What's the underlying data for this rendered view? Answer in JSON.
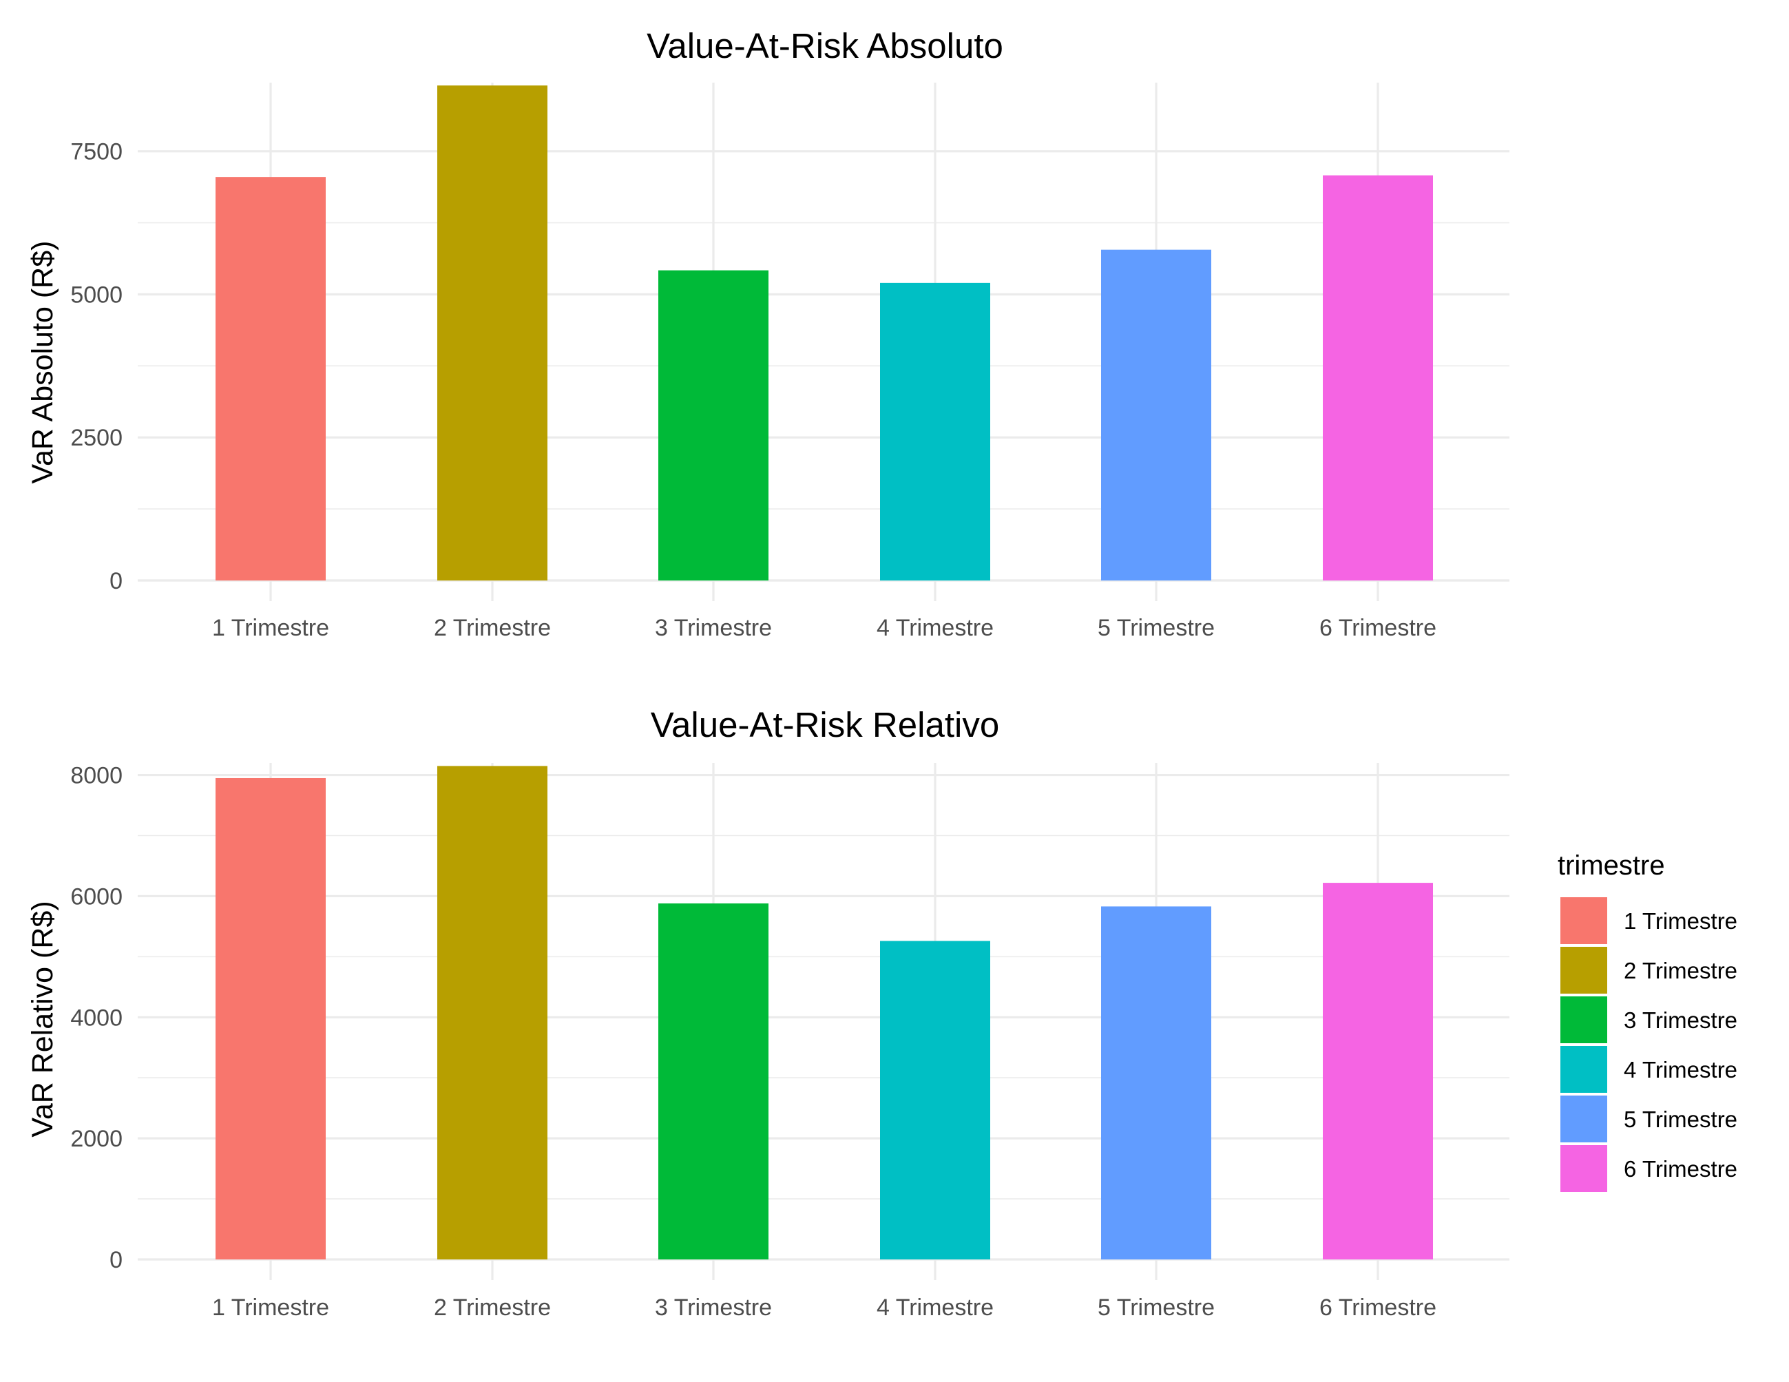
{
  "chart_data": [
    {
      "type": "bar",
      "title": "Value-At-Risk Absoluto",
      "xlabel": "",
      "ylabel": "VaR Absoluto (R$)",
      "categories": [
        "1 Trimestre",
        "2 Trimestre",
        "3 Trimestre",
        "4 Trimestre",
        "5 Trimestre",
        "6 Trimestre"
      ],
      "values": [
        7050,
        8650,
        5420,
        5200,
        5780,
        7080
      ],
      "ylim": [
        0,
        8700
      ],
      "yticks": [
        0,
        2500,
        5000,
        7500
      ],
      "ytick_labels": [
        "0",
        "2500",
        "5000",
        "7500"
      ],
      "grid": true
    },
    {
      "type": "bar",
      "title": "Value-At-Risk Relativo",
      "xlabel": "",
      "ylabel": "VaR Relativo (R$)",
      "categories": [
        "1 Trimestre",
        "2 Trimestre",
        "3 Trimestre",
        "4 Trimestre",
        "5 Trimestre",
        "6 Trimestre"
      ],
      "values": [
        7950,
        8150,
        5880,
        5260,
        5830,
        6220
      ],
      "ylim": [
        0,
        8200
      ],
      "yticks": [
        0,
        2000,
        4000,
        6000,
        8000
      ],
      "ytick_labels": [
        "0",
        "2000",
        "4000",
        "6000",
        "8000"
      ],
      "grid": true
    }
  ],
  "colors": [
    "#F8766D",
    "#B79F00",
    "#00BA38",
    "#00BFC4",
    "#619CFF",
    "#F564E3"
  ],
  "legend": {
    "title": "trimestre",
    "position": "right",
    "items": [
      "1 Trimestre",
      "2 Trimestre",
      "3 Trimestre",
      "4 Trimestre",
      "5 Trimestre",
      "6 Trimestre"
    ]
  }
}
